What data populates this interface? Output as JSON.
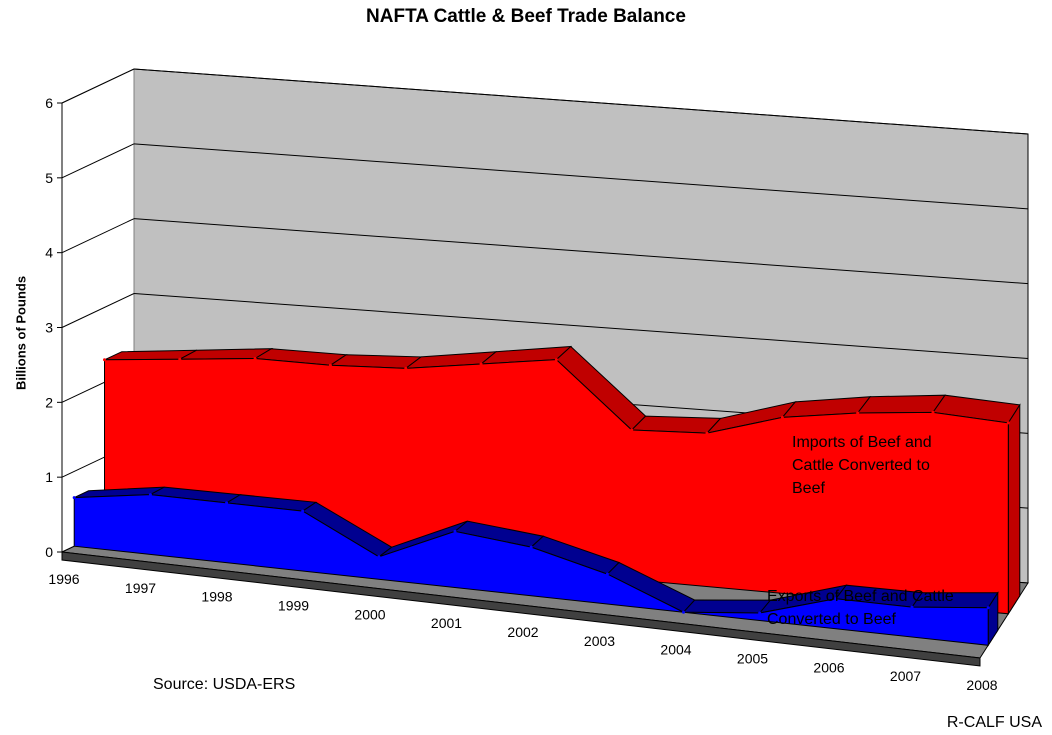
{
  "chart_data": {
    "type": "area",
    "title": "NAFTA Cattle & Beef Trade Balance",
    "ylabel": "Billions of Pounds",
    "xlabel": "",
    "ylim": [
      0,
      6
    ],
    "yticks": [
      "0",
      "1",
      "2",
      "3",
      "4",
      "5",
      "6"
    ],
    "categories": [
      "1996",
      "1997",
      "1998",
      "1999",
      "2000",
      "2001",
      "2002",
      "2003",
      "2004",
      "2005",
      "2006",
      "2007",
      "2008"
    ],
    "series": [
      {
        "name": "Imports of Beef and Cattle Converted to Beef",
        "label_lines": [
          "Imports of Beef and",
          "Cattle Converted to",
          "Beef"
        ],
        "values": [
          2.3,
          2.4,
          2.5,
          2.5,
          2.55,
          2.7,
          2.85,
          2.0,
          2.05,
          2.35,
          2.5,
          2.6,
          2.55
        ],
        "color": "#ff0000",
        "top_color": "#c00000"
      },
      {
        "name": "Exports of Beef and Cattle Converted to Beef",
        "label_lines": [
          "Exports of Beef and Cattle",
          "Converted to Beef"
        ],
        "values": [
          0.65,
          0.8,
          0.8,
          0.8,
          0.3,
          0.75,
          0.65,
          0.4,
          0.0,
          0.1,
          0.4,
          0.4,
          0.5
        ],
        "color": "#0000ff",
        "top_color": "#000090"
      }
    ],
    "grid": true,
    "style": "3d"
  },
  "notes": {
    "source": "Source:  USDA-ERS",
    "credit": "R-CALF USA"
  }
}
